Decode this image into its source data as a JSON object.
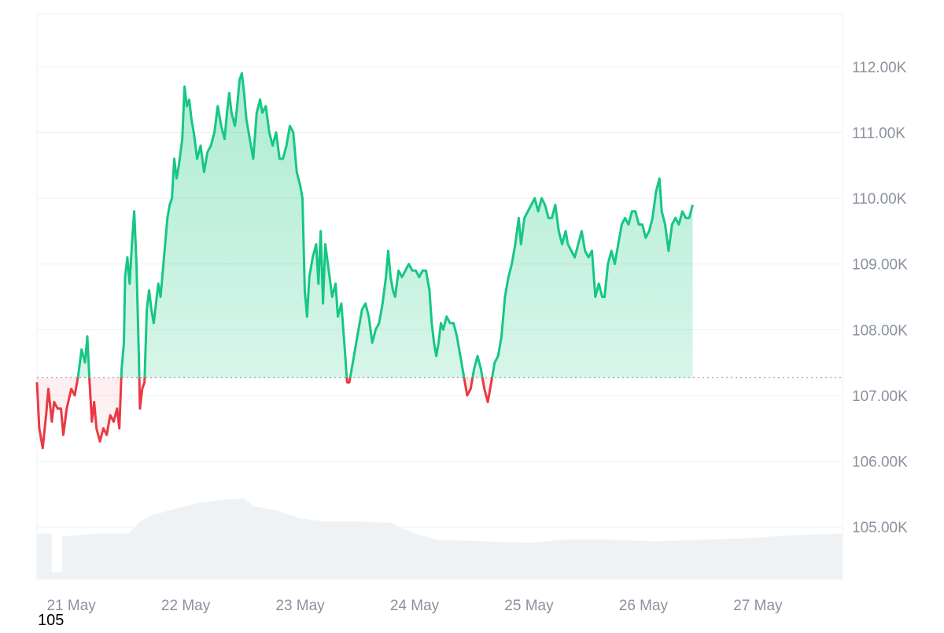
{
  "footer_note": "105",
  "colors": {
    "up": "#16c784",
    "down": "#ea3943",
    "grid": "#eef0f3",
    "tick_text": "#8a919e",
    "baseline": "#8a919e",
    "volume": "#eff2f5"
  },
  "chart_data": {
    "type": "area",
    "baseline_value": 107270,
    "ylim": [
      104200,
      112800
    ],
    "y_ticks": [
      105000,
      106000,
      107000,
      108000,
      109000,
      110000,
      111000,
      112000
    ],
    "y_tick_labels": [
      "105.00K",
      "106.00K",
      "107.00K",
      "108.00K",
      "109.00K",
      "110.00K",
      "111.00K",
      "112.00K"
    ],
    "x_tick_labels": [
      "21 May",
      "22 May",
      "23 May",
      "24 May",
      "25 May",
      "26 May",
      "27 May"
    ],
    "x_tick_days": [
      0.3,
      1.3,
      2.3,
      3.3,
      4.3,
      5.3,
      6.3
    ],
    "x_range_days": [
      0,
      7.04
    ],
    "grid": true,
    "series": [
      {
        "points": [
          [
            0.0,
            107200
          ],
          [
            0.02,
            106500
          ],
          [
            0.05,
            106200
          ],
          [
            0.08,
            106700
          ],
          [
            0.1,
            107100
          ],
          [
            0.13,
            106600
          ],
          [
            0.15,
            106900
          ],
          [
            0.18,
            106800
          ],
          [
            0.21,
            106800
          ],
          [
            0.23,
            106400
          ],
          [
            0.26,
            106800
          ],
          [
            0.3,
            107100
          ],
          [
            0.33,
            107000
          ],
          [
            0.36,
            107300
          ],
          [
            0.39,
            107700
          ],
          [
            0.42,
            107500
          ],
          [
            0.44,
            107900
          ],
          [
            0.46,
            107200
          ],
          [
            0.48,
            106600
          ],
          [
            0.5,
            106900
          ],
          [
            0.52,
            106500
          ],
          [
            0.55,
            106300
          ],
          [
            0.58,
            106500
          ],
          [
            0.61,
            106400
          ],
          [
            0.64,
            106700
          ],
          [
            0.67,
            106600
          ],
          [
            0.7,
            106800
          ],
          [
            0.72,
            106500
          ],
          [
            0.74,
            107400
          ],
          [
            0.76,
            107800
          ],
          [
            0.77,
            108800
          ],
          [
            0.79,
            109100
          ],
          [
            0.81,
            108700
          ],
          [
            0.83,
            109300
          ],
          [
            0.85,
            109800
          ],
          [
            0.87,
            109000
          ],
          [
            0.89,
            107600
          ],
          [
            0.9,
            106800
          ],
          [
            0.92,
            107100
          ],
          [
            0.94,
            107200
          ],
          [
            0.96,
            108300
          ],
          [
            0.98,
            108600
          ],
          [
            1.0,
            108300
          ],
          [
            1.02,
            108100
          ],
          [
            1.04,
            108400
          ],
          [
            1.06,
            108700
          ],
          [
            1.08,
            108500
          ],
          [
            1.1,
            108900
          ],
          [
            1.12,
            109300
          ],
          [
            1.14,
            109700
          ],
          [
            1.16,
            109900
          ],
          [
            1.18,
            110000
          ],
          [
            1.2,
            110600
          ],
          [
            1.22,
            110300
          ],
          [
            1.24,
            110500
          ],
          [
            1.27,
            110900
          ],
          [
            1.29,
            111700
          ],
          [
            1.31,
            111400
          ],
          [
            1.33,
            111500
          ],
          [
            1.35,
            111200
          ],
          [
            1.37,
            111000
          ],
          [
            1.4,
            110600
          ],
          [
            1.43,
            110800
          ],
          [
            1.46,
            110400
          ],
          [
            1.49,
            110700
          ],
          [
            1.52,
            110800
          ],
          [
            1.55,
            111000
          ],
          [
            1.58,
            111400
          ],
          [
            1.61,
            111100
          ],
          [
            1.64,
            110900
          ],
          [
            1.66,
            111300
          ],
          [
            1.68,
            111600
          ],
          [
            1.7,
            111300
          ],
          [
            1.73,
            111100
          ],
          [
            1.75,
            111400
          ],
          [
            1.77,
            111800
          ],
          [
            1.79,
            111900
          ],
          [
            1.81,
            111600
          ],
          [
            1.83,
            111200
          ],
          [
            1.86,
            110900
          ],
          [
            1.89,
            110600
          ],
          [
            1.92,
            111300
          ],
          [
            1.95,
            111500
          ],
          [
            1.97,
            111300
          ],
          [
            2.0,
            111400
          ],
          [
            2.03,
            111000
          ],
          [
            2.06,
            110800
          ],
          [
            2.09,
            111000
          ],
          [
            2.12,
            110600
          ],
          [
            2.15,
            110600
          ],
          [
            2.18,
            110800
          ],
          [
            2.21,
            111100
          ],
          [
            2.24,
            111000
          ],
          [
            2.27,
            110400
          ],
          [
            2.3,
            110200
          ],
          [
            2.32,
            110000
          ],
          [
            2.34,
            108600
          ],
          [
            2.36,
            108200
          ],
          [
            2.38,
            108800
          ],
          [
            2.41,
            109100
          ],
          [
            2.44,
            109300
          ],
          [
            2.46,
            108700
          ],
          [
            2.48,
            109500
          ],
          [
            2.5,
            108400
          ],
          [
            2.52,
            109300
          ],
          [
            2.55,
            108900
          ],
          [
            2.58,
            108500
          ],
          [
            2.61,
            108700
          ],
          [
            2.63,
            108200
          ],
          [
            2.66,
            108400
          ],
          [
            2.69,
            107700
          ],
          [
            2.71,
            107200
          ],
          [
            2.73,
            107200
          ],
          [
            2.75,
            107400
          ],
          [
            2.78,
            107700
          ],
          [
            2.81,
            108000
          ],
          [
            2.84,
            108300
          ],
          [
            2.87,
            108400
          ],
          [
            2.9,
            108200
          ],
          [
            2.93,
            107800
          ],
          [
            2.96,
            108000
          ],
          [
            2.99,
            108100
          ],
          [
            3.02,
            108400
          ],
          [
            3.05,
            108800
          ],
          [
            3.07,
            109200
          ],
          [
            3.09,
            108800
          ],
          [
            3.11,
            108600
          ],
          [
            3.13,
            108500
          ],
          [
            3.16,
            108900
          ],
          [
            3.19,
            108800
          ],
          [
            3.22,
            108900
          ],
          [
            3.25,
            109000
          ],
          [
            3.28,
            108900
          ],
          [
            3.31,
            108900
          ],
          [
            3.34,
            108800
          ],
          [
            3.37,
            108900
          ],
          [
            3.4,
            108900
          ],
          [
            3.43,
            108600
          ],
          [
            3.45,
            108100
          ],
          [
            3.47,
            107800
          ],
          [
            3.49,
            107600
          ],
          [
            3.51,
            107800
          ],
          [
            3.53,
            108100
          ],
          [
            3.55,
            108000
          ],
          [
            3.58,
            108200
          ],
          [
            3.61,
            108100
          ],
          [
            3.64,
            108100
          ],
          [
            3.67,
            107900
          ],
          [
            3.7,
            107600
          ],
          [
            3.73,
            107300
          ],
          [
            3.76,
            107000
          ],
          [
            3.79,
            107100
          ],
          [
            3.82,
            107400
          ],
          [
            3.85,
            107600
          ],
          [
            3.88,
            107400
          ],
          [
            3.91,
            107100
          ],
          [
            3.94,
            106900
          ],
          [
            3.97,
            107200
          ],
          [
            4.0,
            107500
          ],
          [
            4.03,
            107600
          ],
          [
            4.06,
            107900
          ],
          [
            4.09,
            108500
          ],
          [
            4.12,
            108800
          ],
          [
            4.15,
            109000
          ],
          [
            4.18,
            109300
          ],
          [
            4.21,
            109700
          ],
          [
            4.23,
            109300
          ],
          [
            4.26,
            109700
          ],
          [
            4.29,
            109800
          ],
          [
            4.32,
            109900
          ],
          [
            4.35,
            110000
          ],
          [
            4.38,
            109800
          ],
          [
            4.41,
            110000
          ],
          [
            4.44,
            109900
          ],
          [
            4.47,
            109700
          ],
          [
            4.5,
            109700
          ],
          [
            4.53,
            109900
          ],
          [
            4.56,
            109500
          ],
          [
            4.59,
            109300
          ],
          [
            4.62,
            109500
          ],
          [
            4.64,
            109300
          ],
          [
            4.67,
            109200
          ],
          [
            4.7,
            109100
          ],
          [
            4.73,
            109300
          ],
          [
            4.76,
            109500
          ],
          [
            4.79,
            109200
          ],
          [
            4.82,
            109100
          ],
          [
            4.85,
            109200
          ],
          [
            4.88,
            108500
          ],
          [
            4.91,
            108700
          ],
          [
            4.94,
            108500
          ],
          [
            4.96,
            108500
          ],
          [
            4.99,
            109000
          ],
          [
            5.02,
            109200
          ],
          [
            5.05,
            109000
          ],
          [
            5.08,
            109300
          ],
          [
            5.11,
            109600
          ],
          [
            5.14,
            109700
          ],
          [
            5.17,
            109600
          ],
          [
            5.2,
            109800
          ],
          [
            5.23,
            109800
          ],
          [
            5.26,
            109600
          ],
          [
            5.29,
            109600
          ],
          [
            5.32,
            109400
          ],
          [
            5.35,
            109500
          ],
          [
            5.38,
            109700
          ],
          [
            5.41,
            110100
          ],
          [
            5.44,
            110300
          ],
          [
            5.46,
            109800
          ],
          [
            5.49,
            109600
          ],
          [
            5.52,
            109200
          ],
          [
            5.55,
            109600
          ],
          [
            5.58,
            109700
          ],
          [
            5.61,
            109600
          ],
          [
            5.64,
            109800
          ],
          [
            5.67,
            109700
          ],
          [
            5.7,
            109700
          ],
          [
            5.73,
            109900
          ]
        ]
      }
    ]
  }
}
